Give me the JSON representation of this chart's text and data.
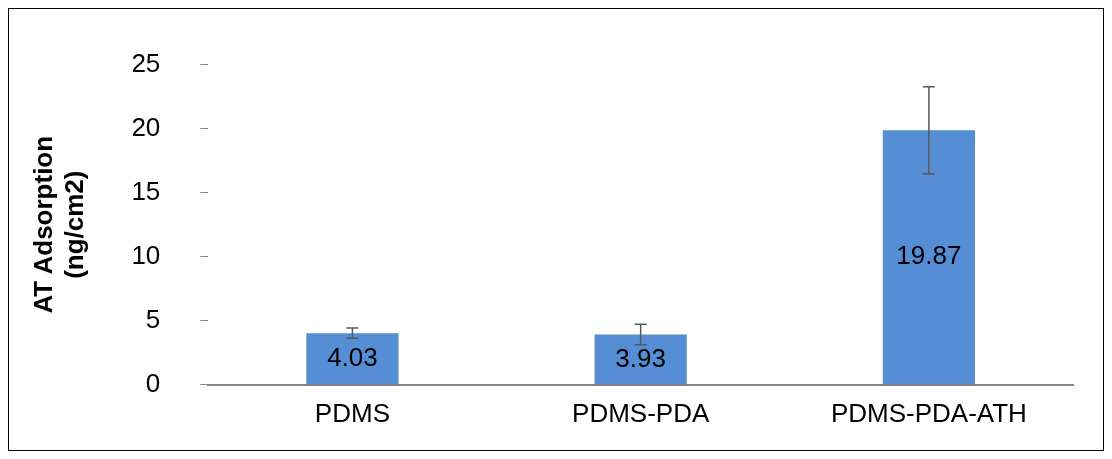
{
  "chart_data": {
    "type": "bar",
    "ylabel": "AT Adsorption (ng/cm2)",
    "categories": [
      "PDMS",
      "PDMS-PDA",
      "PDMS-PDA-ATH"
    ],
    "values": [
      4.03,
      3.93,
      19.87
    ],
    "errors": [
      0.4,
      0.8,
      3.4
    ],
    "color": "#558ed5",
    "ylim": [
      0,
      25
    ],
    "yticks": [
      0,
      5,
      10,
      15,
      20,
      25
    ],
    "grid": false,
    "legend": false,
    "data_labels": true
  }
}
